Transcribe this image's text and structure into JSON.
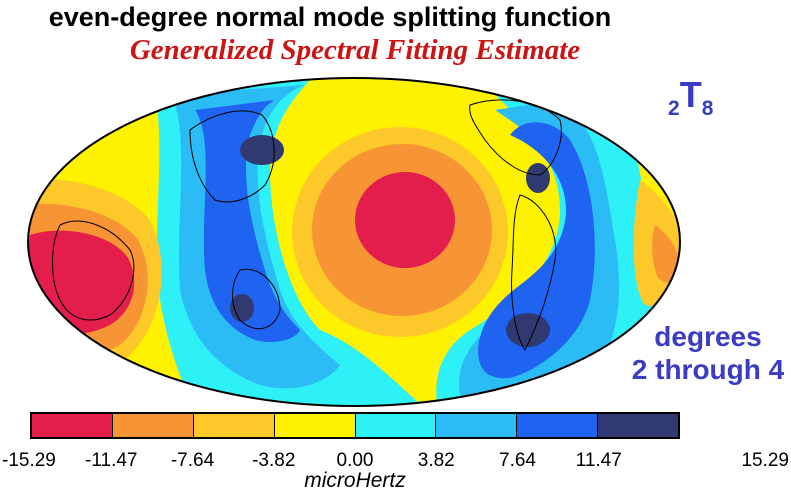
{
  "header": {
    "title": "even-degree normal mode splitting function",
    "subtitle": "Generalized Spectral Fitting Estimate"
  },
  "mode": {
    "prefix": "2",
    "letter": "T",
    "suffix": "8"
  },
  "degrees_label": {
    "line1": "degrees",
    "line2": "2 through 4"
  },
  "colorbar": {
    "unit": "microHertz",
    "ticks": [
      "-15.29",
      "-11.47",
      "-7.64",
      "-3.82",
      "0.00",
      "3.82",
      "7.64",
      "11.47",
      "15.29"
    ],
    "colors": [
      "#e31e4c",
      "#f79433",
      "#fdc82a",
      "#fff200",
      "#2ef0f7",
      "#2cbcf5",
      "#1e64f0",
      "#303a70"
    ]
  }
}
